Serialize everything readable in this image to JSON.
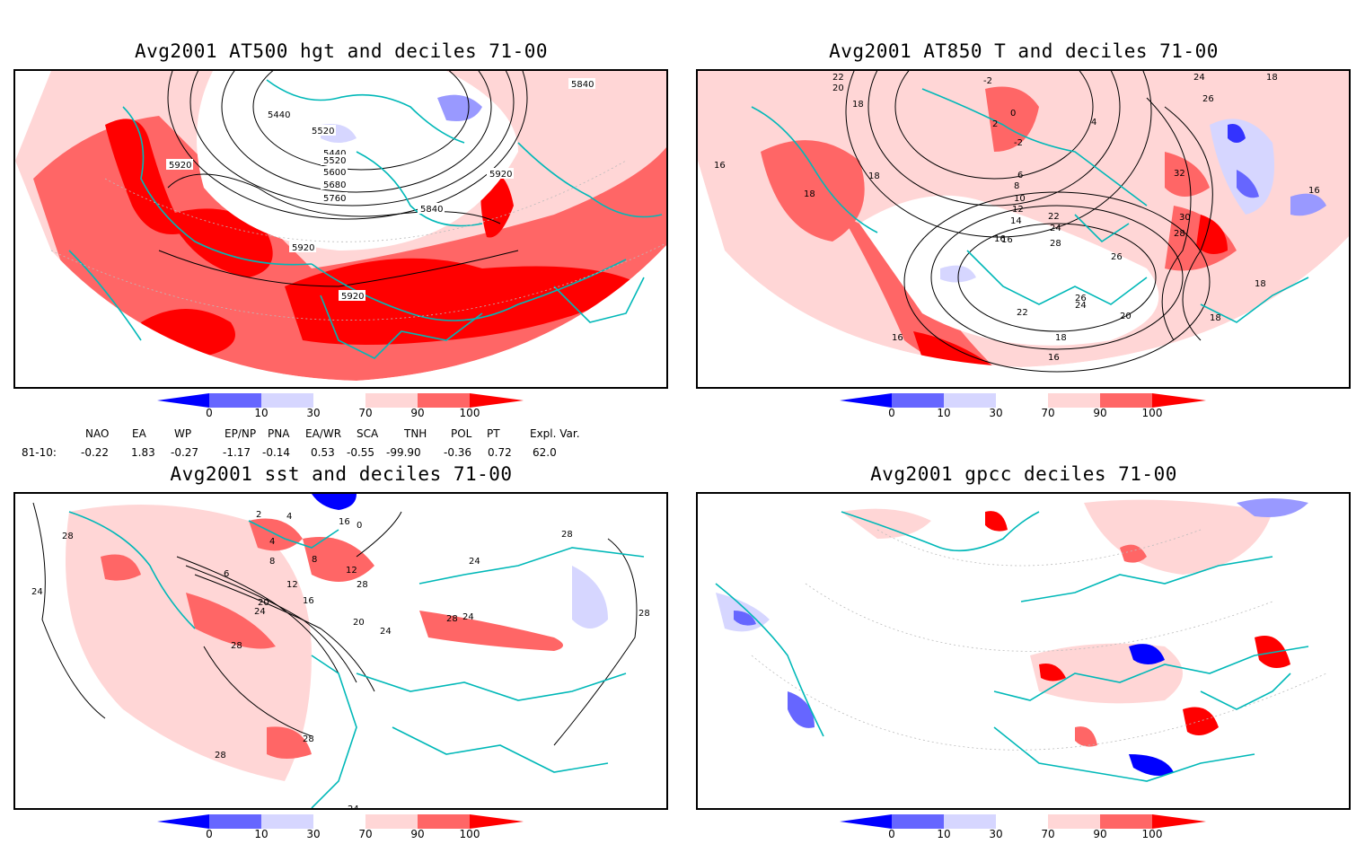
{
  "titles": {
    "top_left": "Avg2001 AT500 hgt and deciles 71-00",
    "top_right": "Avg2001 AT850 T and deciles 71-00",
    "bottom_left": "Avg2001 sst and deciles 71-00",
    "bottom_right": "Avg2001 gpcc deciles 71-00"
  },
  "colorbar": {
    "ticks": [
      "0",
      "10",
      "30",
      "70",
      "90",
      "100"
    ],
    "colors": [
      "#0000ff",
      "#6666ff",
      "#d6d6ff",
      "#ffffff",
      "#ffd6d6",
      "#ff6666",
      "#ff0000"
    ]
  },
  "indices": {
    "headers": [
      "NAO",
      "EA",
      "WP",
      "EP/NP",
      "PNA",
      "EA/WR",
      "SCA",
      "TNH",
      "POL",
      "PT",
      "Expl. Var."
    ],
    "row_label": "81-10:",
    "values": [
      "-0.22",
      "1.83",
      "-0.27",
      "-1.17",
      "-0.14",
      "0.53",
      "-0.55",
      "-99.90",
      "-0.36",
      "0.72",
      "62.0"
    ]
  },
  "contour_labels": {
    "top_left": [
      "5440",
      "5440",
      "5520",
      "5520",
      "5600",
      "5680",
      "5760",
      "5840",
      "5920",
      "5920",
      "5920",
      "5920",
      "5840",
      "5840"
    ],
    "top_right": [
      "22",
      "20",
      "18",
      "-2",
      "0",
      "2",
      "-2",
      "4",
      "6",
      "8",
      "10",
      "12",
      "14",
      "16",
      "18",
      "18",
      "16",
      "22",
      "24",
      "26",
      "28",
      "30",
      "32",
      "28",
      "26",
      "24",
      "22",
      "20",
      "18",
      "16",
      "16",
      "18",
      "16",
      "18",
      "18",
      "16",
      "24",
      "26"
    ],
    "bottom_left": [
      "28",
      "24",
      "28",
      "6",
      "4",
      "8",
      "8",
      "12",
      "12",
      "16",
      "20",
      "24",
      "28",
      "20",
      "24",
      "28",
      "24",
      "28",
      "28",
      "16",
      "0",
      "4",
      "2",
      "24",
      "24",
      "28",
      "28"
    ]
  }
}
